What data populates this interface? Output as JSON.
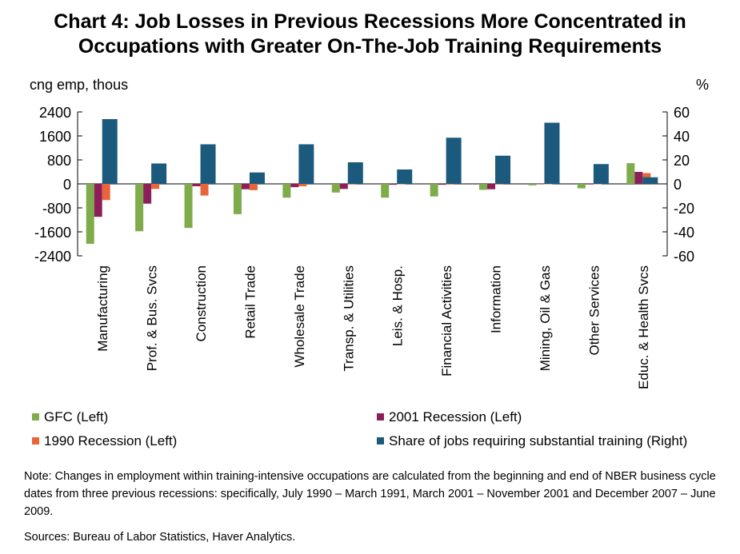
{
  "title_line1": "Chart 4: Job Losses in Previous Recessions More Concentrated in",
  "title_line2": "Occupations with Greater On-The-Job Training Requirements",
  "note": "Note: Changes in employment within training-intensive occupations are calculated from the beginning and end of NBER business cycle dates from three previous recessions: specifically, July 1990 – March 1991, March 2001 – November 2001 and December 2007 – June 2009.",
  "sources": "Sources: Bureau of Labor Statistics, Haver Analytics.",
  "chart_data": {
    "type": "bar",
    "ylabel": "cng emp, thous",
    "y2label": "%",
    "ylim": [
      -2400,
      2400
    ],
    "y2lim": [
      -60,
      60
    ],
    "yticks": [
      "2400",
      "1600",
      "800",
      "0",
      "-800",
      "-1600",
      "-2400"
    ],
    "y2ticks": [
      "60",
      "40",
      "20",
      "0",
      "-20",
      "-40",
      "-60"
    ],
    "categories": [
      "Manufacturing",
      "Prof. & Bus. Svcs",
      "Construction",
      "Retail Trade",
      "Wholesale Trade",
      "Transp. & Utilities",
      "Leis. & Hosp.",
      "Financial Activities",
      "Information",
      "Mining, Oil & Gas",
      "Other Services",
      "Educ. & Health Svcs"
    ],
    "series": [
      {
        "name": "GFC (Left)",
        "axis": "left",
        "color": "#7fac4a",
        "values": [
          -2000,
          -1580,
          -1470,
          -1010,
          -460,
          -290,
          -460,
          -420,
          -200,
          -50,
          -150,
          690
        ]
      },
      {
        "name": "2001 Recession (Left)",
        "axis": "left",
        "color": "#8c1f5a",
        "values": [
          -1100,
          -660,
          -80,
          -180,
          -110,
          -170,
          -30,
          -30,
          -180,
          -10,
          -20,
          400
        ]
      },
      {
        "name": "1990 Recession (Left)",
        "axis": "left",
        "color": "#e8653a",
        "values": [
          -540,
          -170,
          -390,
          -210,
          -80,
          -20,
          -10,
          -20,
          -20,
          -10,
          -10,
          360
        ]
      },
      {
        "name": "Share of jobs requiring substantial training (Right)",
        "axis": "right",
        "color": "#1b5a7d",
        "values": [
          54,
          17,
          33,
          9.5,
          33,
          18,
          12,
          38.5,
          23.5,
          51,
          16.5,
          5.5
        ]
      }
    ],
    "legend_position": "bottom",
    "grid": false
  }
}
